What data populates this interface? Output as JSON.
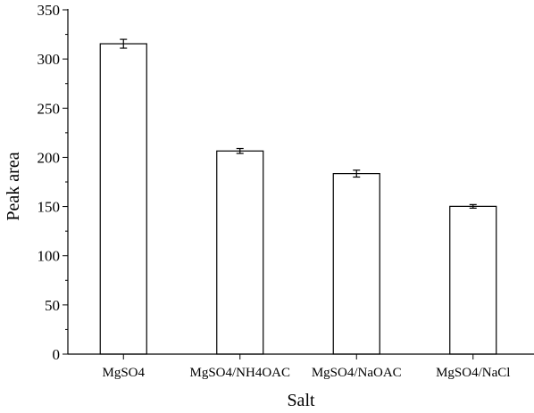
{
  "chart_data": {
    "type": "bar",
    "categories": [
      "MgSO4",
      "MgSO4/NH4OAC",
      "MgSO4/NaOAC",
      "MgSO4/NaCl"
    ],
    "values": [
      315.5,
      206.5,
      183.5,
      150.2
    ],
    "errors": [
      4.5,
      2.5,
      3.5,
      1.8
    ],
    "xlabel": "Salt",
    "ylabel": "Peak area",
    "ylim": [
      0,
      350
    ],
    "yticks": [
      0,
      50,
      100,
      150,
      200,
      250,
      300,
      350
    ],
    "minor_ticks": true,
    "grid": false,
    "legend": "none"
  }
}
